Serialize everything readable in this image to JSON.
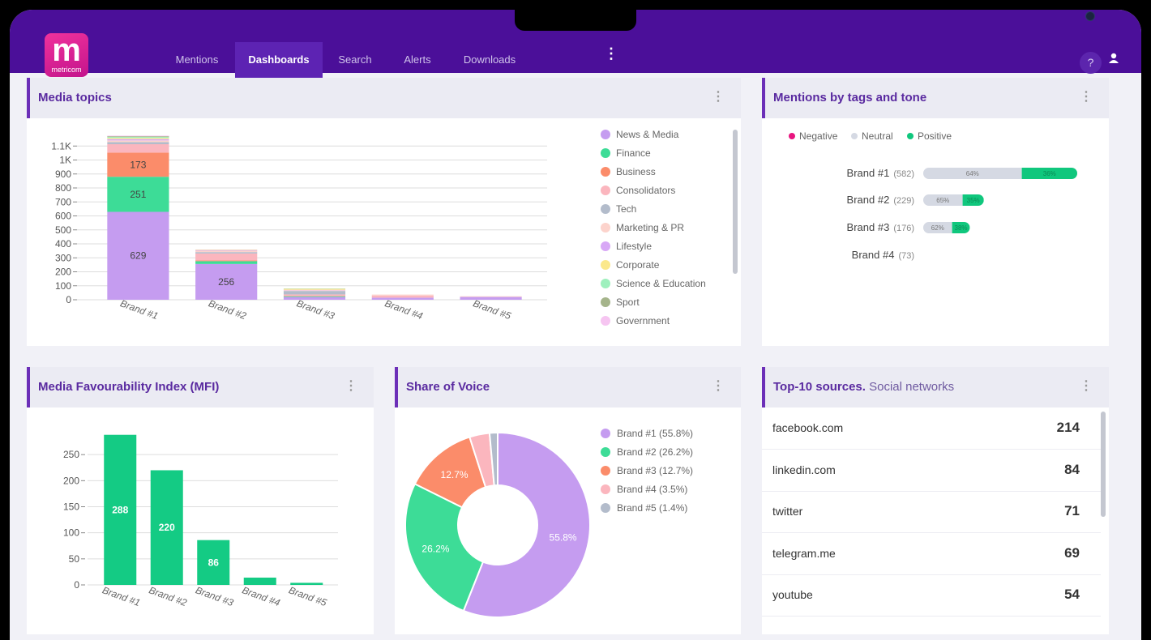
{
  "nav": {
    "logo": "m",
    "brand": "metricom",
    "tabs": [
      "Mentions",
      "Dashboards",
      "Search",
      "Alerts",
      "Downloads"
    ],
    "active_tab": 1,
    "help": "?"
  },
  "chart_data": [
    {
      "type": "stacked_bar",
      "title": "Media topics",
      "categories": [
        "Brand #1",
        "Brand #2",
        "Brand #3",
        "Brand #4",
        "Brand #5"
      ],
      "series": [
        {
          "name": "News & Media",
          "color": "#c59cf0",
          "values": [
            629,
            256,
            20,
            15,
            20
          ]
        },
        {
          "name": "Finance",
          "color": "#3ddc97",
          "values": [
            251,
            20,
            5,
            0,
            0
          ]
        },
        {
          "name": "Business",
          "color": "#fb8c6a",
          "values": [
            173,
            5,
            3,
            0,
            0
          ]
        },
        {
          "name": "Consolidators",
          "color": "#fbb6be",
          "values": [
            60,
            50,
            10,
            15,
            0
          ]
        },
        {
          "name": "Tech",
          "color": "#b3bccb",
          "values": [
            15,
            10,
            25,
            0,
            0
          ]
        },
        {
          "name": "Marketing & PR",
          "color": "#fcd3cc",
          "values": [
            12,
            10,
            5,
            7,
            5
          ]
        },
        {
          "name": "Lifestyle",
          "color": "#d8a8f6",
          "values": [
            10,
            5,
            3,
            0,
            0
          ]
        },
        {
          "name": "Corporate",
          "color": "#fbe88b",
          "values": [
            8,
            3,
            7,
            0,
            0
          ]
        },
        {
          "name": "Science & Education",
          "color": "#9ef0bd",
          "values": [
            7,
            0,
            2,
            0,
            0
          ]
        },
        {
          "name": "Sport",
          "color": "#a5b48b",
          "values": [
            5,
            0,
            1,
            0,
            0
          ]
        },
        {
          "name": "Government",
          "color": "#f6c5f1",
          "values": [
            4,
            0,
            0,
            0,
            0
          ]
        }
      ],
      "ylim": [
        0,
        1200
      ],
      "yticks": [
        0,
        100,
        200,
        300,
        400,
        500,
        600,
        700,
        800,
        900,
        {
          "value": 1000,
          "label": "1K"
        },
        {
          "value": 1100,
          "label": "1.1K"
        }
      ],
      "grid": true,
      "legend": "right"
    },
    {
      "type": "tone_bar",
      "title": "Mentions by tags and tone",
      "categories": [
        "Brand #1",
        "Brand #2",
        "Brand #3",
        "Brand #4"
      ],
      "totals": {
        "values": [
          582,
          229,
          176,
          73
        ],
        "value_labels": [
          "(582)",
          "(229)",
          "(176)",
          "(73)"
        ]
      },
      "series": [
        {
          "name": "Negative",
          "color": "#e8157f",
          "values": [
            0,
            0,
            0,
            null
          ]
        },
        {
          "name": "Neutral",
          "color": "#d5d9e3",
          "values": [
            64,
            65,
            62,
            null
          ],
          "value_labels": [
            "64%",
            "65%",
            "62%",
            null
          ]
        },
        {
          "name": "Positive",
          "color": "#10c77d",
          "values": [
            36,
            35,
            38,
            null
          ],
          "value_labels": [
            "36%",
            "35%",
            "38%",
            null
          ]
        }
      ],
      "legend": "top"
    },
    {
      "type": "bar",
      "title": "Media Favourability Index (MFI)",
      "categories": [
        "Brand #1",
        "Brand #2",
        "Brand #3",
        "Brand #4",
        "Brand #5"
      ],
      "values": [
        288,
        220,
        86,
        14,
        4
      ],
      "color": "#14cb84",
      "ylim": [
        0,
        300
      ],
      "yticks": [
        0,
        50,
        100,
        150,
        200,
        250
      ],
      "grid": true
    },
    {
      "type": "donut",
      "title": "Share of Voice",
      "categories": [
        "Brand #1 (55.8%)",
        "Brand #2 (26.2%)",
        "Brand #3 (12.7%)",
        "Brand #4 (3.5%)",
        "Brand #5 (1.4%)"
      ],
      "values": [
        55.8,
        26.2,
        12.7,
        3.5,
        1.4
      ],
      "value_labels": [
        "55.8%",
        "26.2%",
        "12.7%",
        null,
        null
      ],
      "colors": [
        "#c59cf0",
        "#3ddc97",
        "#fb8c6a",
        "#fbb6be",
        "#b3bccb"
      ],
      "legend": "right"
    }
  ],
  "sources": {
    "title": "Top-10 sources.",
    "subtitle": "Social networks",
    "rows": [
      [
        "facebook.com",
        214
      ],
      [
        "linkedin.com",
        84
      ],
      [
        "twitter",
        71
      ],
      [
        "telegram.me",
        69
      ],
      [
        "youtube",
        54
      ]
    ]
  }
}
